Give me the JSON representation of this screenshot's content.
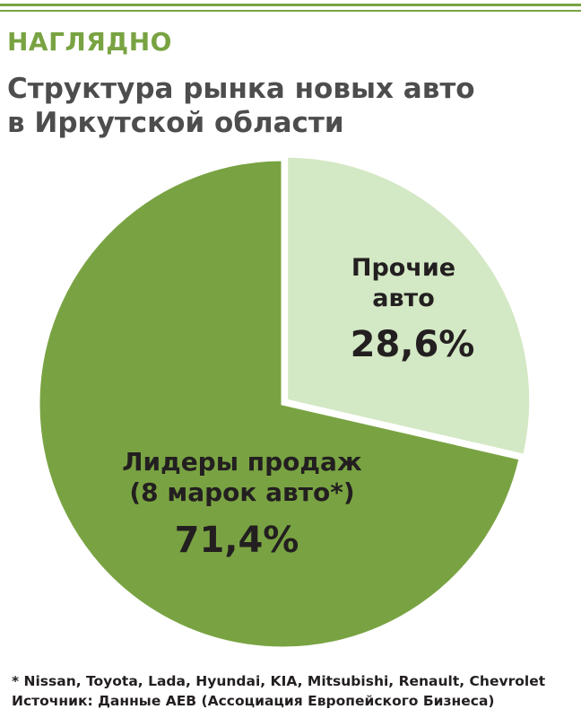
{
  "header": {
    "kicker": "НАГЛЯДНО",
    "title_line1": "Структура рынка новых авто",
    "title_line2": "в Иркутской области"
  },
  "colors": {
    "accent": "#79a342",
    "leaders_slice": "#79a342",
    "other_slice": "#d3e8c4",
    "title_text": "#4d4d4d",
    "body_text": "#231f20"
  },
  "chart_data": {
    "type": "pie",
    "title": "Структура рынка новых авто в Иркутской области",
    "slices": [
      {
        "label_line1": "Прочие",
        "label_line2": "авто",
        "value": 28.6,
        "value_label": "28,6%",
        "color": "#d3e8c4"
      },
      {
        "label_line1": "Лидеры продаж",
        "label_line2": "(8 марок авто*)",
        "value": 71.4,
        "value_label": "71,4%",
        "color": "#79a342"
      }
    ],
    "start": "12 o'clock",
    "direction": "clockwise",
    "exploded_slice": "Прочие авто",
    "legend": "none"
  },
  "footnotes": {
    "brands": "* Nissan, Toyota, Lada, Hyundai, KIA, Mitsubishi, Renault, Chevrolet",
    "source": "Источник: Данные АЕВ (Ассоциация Европейского Бизнеса)"
  }
}
